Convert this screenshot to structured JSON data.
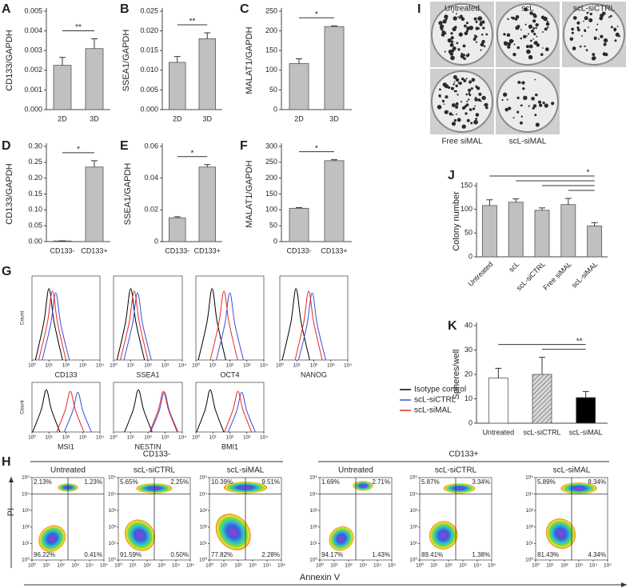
{
  "chart_data": [
    {
      "type": "bar",
      "label": "A",
      "ylabel": "CD133/GAPDH",
      "categories": [
        "2D",
        "3D"
      ],
      "values": [
        0.00225,
        0.0031
      ],
      "errors": [
        0.0004,
        0.0005
      ],
      "ylim": [
        0,
        0.005
      ],
      "yticks": [
        {
          "value": 0,
          "label": "0.000"
        },
        0.001,
        0.002,
        0.003,
        0.004,
        0.005
      ],
      "color": "#c0c0c0",
      "significance": "**"
    },
    {
      "type": "bar",
      "label": "B",
      "ylabel": "SSEA1/GAPDH",
      "categories": [
        "2D",
        "3D"
      ],
      "values": [
        0.012,
        0.018
      ],
      "errors": [
        0.0015,
        0.0015
      ],
      "ylim": [
        0,
        0.025
      ],
      "yticks": [
        {
          "value": 0,
          "label": "0.000"
        },
        0.005,
        {
          "value": 0.01,
          "label": "0.010"
        },
        0.015,
        {
          "value": 0.02,
          "label": "0.020"
        },
        0.025
      ],
      "color": "#c0c0c0",
      "significance": "**"
    },
    {
      "type": "bar",
      "label": "C",
      "ylabel": "MALAT1/GAPDH",
      "categories": [
        "2D",
        "3D"
      ],
      "values": [
        117,
        211
      ],
      "errors": [
        12,
        2
      ],
      "ylim": [
        0,
        250
      ],
      "yticks": [
        0,
        50,
        100,
        150,
        200,
        250
      ],
      "color": "#c0c0c0",
      "significance": "*"
    },
    {
      "type": "bar",
      "label": "D",
      "ylabel": "CD133/GAPDH",
      "categories": [
        "CD133-",
        "CD133+"
      ],
      "values": [
        0.002,
        0.235
      ],
      "errors": [
        0.0005,
        0.02
      ],
      "ylim": [
        0,
        0.3
      ],
      "yticks": [
        {
          "value": 0,
          "label": "0.00"
        },
        0.05,
        {
          "value": 0.1,
          "label": "0.10"
        },
        0.15,
        {
          "value": 0.2,
          "label": "0.20"
        },
        0.25,
        {
          "value": 0.3,
          "label": "0.30"
        }
      ],
      "color": "#c0c0c0",
      "significance": "*"
    },
    {
      "type": "bar",
      "label": "E",
      "ylabel": "SSEA1/GAPDH",
      "categories": [
        "CD133-",
        "CD133+"
      ],
      "values": [
        0.015,
        0.047
      ],
      "errors": [
        0.0007,
        0.0015
      ],
      "ylim": [
        0,
        0.06
      ],
      "yticks": [
        0,
        0.02,
        0.04,
        0.06
      ],
      "color": "#c0c0c0",
      "significance": "*"
    },
    {
      "type": "bar",
      "label": "F",
      "ylabel": "MALAT1/GAPDH",
      "categories": [
        "CD133-",
        "CD133+"
      ],
      "values": [
        105,
        255
      ],
      "errors": [
        2,
        3
      ],
      "ylim": [
        0,
        300
      ],
      "yticks": [
        0,
        50,
        100,
        150,
        200,
        250,
        300
      ],
      "color": "#c0c0c0",
      "significance": "*"
    },
    {
      "type": "bar",
      "label": "J",
      "ylabel": "Colony number",
      "categories": [
        "Untreated",
        "scL",
        "scL-siCTRL",
        "Free siMAL",
        "scL-siMAL"
      ],
      "values": [
        108,
        115,
        98,
        110,
        65
      ],
      "errors": [
        12,
        7,
        5,
        13,
        7
      ],
      "ylim": [
        0,
        150
      ],
      "yticks": [
        0,
        50,
        100,
        150
      ],
      "color": "#c0c0c0",
      "significance": "*",
      "rotate_labels": true
    },
    {
      "type": "bar",
      "label": "K",
      "ylabel": "Spheres/well",
      "categories": [
        "Untreated",
        "scL-siCTRL",
        "scL-siMAL"
      ],
      "values": [
        18.5,
        20,
        10.5
      ],
      "errors": [
        4,
        7,
        2.5
      ],
      "ylim": [
        0,
        40
      ],
      "yticks": [
        0,
        10,
        20,
        30,
        40
      ],
      "colors": [
        "#ffffff",
        "#bfbfbf",
        "#000000"
      ],
      "hatch": [
        false,
        true,
        false
      ],
      "significance": "**"
    },
    {
      "type": "line",
      "label": "G",
      "ylabel": "Count",
      "xlabel": "CD133",
      "xscale": "log",
      "xlim": [
        1,
        10000
      ],
      "xticks": [
        {
          "value": 1,
          "label": "10⁰"
        },
        {
          "value": 10,
          "label": "10¹"
        },
        {
          "value": 100,
          "label": "10²"
        },
        {
          "value": 1000,
          "label": "10³"
        },
        {
          "value": 10000,
          "label": "10⁴"
        }
      ],
      "ylim": [
        0,
        100
      ],
      "series": [
        {
          "color": "#000000",
          "x": [
            1.6,
            5,
            10,
            20,
            63
          ],
          "values": [
            0,
            45,
            85,
            45,
            0
          ]
        },
        {
          "color": "#3a4fd8",
          "x": [
            4,
            12.5,
            25,
            50,
            158
          ],
          "values": [
            0,
            42,
            80,
            42,
            0
          ]
        },
        {
          "color": "#e8262b",
          "x": [
            2.5,
            8,
            16,
            32,
            100
          ],
          "values": [
            0,
            44,
            82,
            44,
            0
          ]
        }
      ]
    },
    {
      "type": "line",
      "xlabel": "SSEA1",
      "xscale": "log",
      "xlim": [
        1,
        10000
      ],
      "xticks": [
        {
          "value": 1,
          "label": "10⁰"
        },
        {
          "value": 10,
          "label": "10¹"
        },
        {
          "value": 100,
          "label": "10²"
        },
        {
          "value": 1000,
          "label": "10³"
        },
        {
          "value": 10000,
          "label": "10⁴"
        }
      ],
      "ylim": [
        0,
        100
      ],
      "series": [
        {
          "color": "#000000",
          "x": [
            1.6,
            5,
            10,
            20,
            63
          ],
          "values": [
            0,
            45,
            85,
            45,
            0
          ]
        },
        {
          "color": "#3a4fd8",
          "x": [
            4,
            12.5,
            25,
            50,
            158
          ],
          "values": [
            0,
            42,
            80,
            42,
            0
          ]
        },
        {
          "color": "#e8262b",
          "x": [
            2.5,
            8,
            16,
            32,
            100
          ],
          "values": [
            0,
            44,
            82,
            44,
            0
          ]
        }
      ]
    },
    {
      "type": "line",
      "xlabel": "OCT4",
      "xscale": "log",
      "xlim": [
        1,
        10000
      ],
      "xticks": [
        {
          "value": 1,
          "label": "10⁰"
        },
        {
          "value": 10,
          "label": "10¹"
        },
        {
          "value": 100,
          "label": "10²"
        },
        {
          "value": 1000,
          "label": "10³"
        },
        {
          "value": 10000,
          "label": "10⁴"
        }
      ],
      "ylim": [
        0,
        100
      ],
      "series": [
        {
          "color": "#000000",
          "x": [
            1.4,
            4.5,
            9,
            18,
            57
          ],
          "values": [
            0,
            45,
            85,
            45,
            0
          ]
        },
        {
          "color": "#3a4fd8",
          "x": [
            16,
            50,
            100,
            200,
            630
          ],
          "values": [
            0,
            42,
            80,
            42,
            0
          ]
        },
        {
          "color": "#e8262b",
          "x": [
            7.1,
            22.5,
            45,
            90,
            284
          ],
          "values": [
            0,
            44,
            82,
            44,
            0
          ]
        }
      ]
    },
    {
      "type": "line",
      "xlabel": "NANOG",
      "xscale": "log",
      "xlim": [
        1,
        10000
      ],
      "xticks": [
        {
          "value": 1,
          "label": "10⁰"
        },
        {
          "value": 10,
          "label": "10¹"
        },
        {
          "value": 100,
          "label": "10²"
        },
        {
          "value": 1000,
          "label": "10³"
        },
        {
          "value": 10000,
          "label": "10⁴"
        }
      ],
      "ylim": [
        0,
        100
      ],
      "series": [
        {
          "color": "#000000",
          "x": [
            1.4,
            4.5,
            9,
            18,
            57
          ],
          "values": [
            0,
            45,
            85,
            45,
            0
          ]
        },
        {
          "color": "#3a4fd8",
          "x": [
            12.7,
            40,
            80,
            160,
            504
          ],
          "values": [
            0,
            42,
            80,
            42,
            0
          ]
        },
        {
          "color": "#e8262b",
          "x": [
            7.9,
            25,
            50,
            100,
            315
          ],
          "values": [
            0,
            44,
            82,
            44,
            0
          ]
        }
      ]
    },
    {
      "type": "line",
      "ylabel": "Count",
      "xlabel": "MSI1",
      "xscale": "log",
      "xlim": [
        1,
        10000
      ],
      "xticks": [
        {
          "value": 1,
          "label": "10⁰"
        },
        {
          "value": 10,
          "label": "10¹"
        },
        {
          "value": 100,
          "label": "10²"
        },
        {
          "value": 1000,
          "label": "10³"
        },
        {
          "value": 10000,
          "label": "10⁴"
        }
      ],
      "ylim": [
        0,
        100
      ],
      "series": [
        {
          "color": "#000000",
          "x": [
            1.1,
            3.5,
            7,
            14,
            44
          ],
          "values": [
            0,
            45,
            85,
            45,
            0
          ]
        },
        {
          "color": "#3a4fd8",
          "x": [
            79,
            250,
            500,
            1000,
            3150
          ],
          "values": [
            0,
            42,
            80,
            42,
            0
          ]
        },
        {
          "color": "#e8262b",
          "x": [
            28.6,
            90,
            180,
            360,
            1134
          ],
          "values": [
            0,
            44,
            82,
            44,
            0
          ]
        }
      ]
    },
    {
      "type": "line",
      "xlabel": "NESTIN",
      "xscale": "log",
      "xlim": [
        1,
        10000
      ],
      "xticks": [
        {
          "value": 1,
          "label": "10⁰"
        },
        {
          "value": 10,
          "label": "10¹"
        },
        {
          "value": 100,
          "label": "10²"
        },
        {
          "value": 1000,
          "label": "10³"
        },
        {
          "value": 10000,
          "label": "10⁴"
        }
      ],
      "ylim": [
        0,
        100
      ],
      "series": [
        {
          "color": "#000000",
          "x": [
            4.4,
            14,
            28,
            56,
            176
          ],
          "values": [
            0,
            45,
            85,
            45,
            0
          ]
        },
        {
          "color": "#3a4fd8",
          "x": [
            143,
            450,
            900,
            1800,
            5670
          ],
          "values": [
            0,
            42,
            80,
            42,
            0
          ]
        },
        {
          "color": "#e8262b",
          "x": [
            127,
            400,
            800,
            1600,
            5040
          ],
          "values": [
            0,
            44,
            82,
            44,
            0
          ]
        }
      ]
    },
    {
      "type": "line",
      "xlabel": "BMI1",
      "xscale": "log",
      "xlim": [
        1,
        10000
      ],
      "xticks": [
        {
          "value": 1,
          "label": "10⁰"
        },
        {
          "value": 10,
          "label": "10¹"
        },
        {
          "value": 100,
          "label": "10²"
        },
        {
          "value": 1000,
          "label": "10³"
        },
        {
          "value": 10000,
          "label": "10⁴"
        }
      ],
      "ylim": [
        0,
        100
      ],
      "series": [
        {
          "name": "Isotype control",
          "color": "#000000",
          "x": [
            1.1,
            3.5,
            7,
            14,
            44
          ],
          "values": [
            0,
            45,
            85,
            45,
            0
          ]
        },
        {
          "name": "scL-siCTRL",
          "color": "#3a4fd8",
          "x": [
            79,
            250,
            500,
            1000,
            3150
          ],
          "values": [
            0,
            42,
            80,
            42,
            0
          ]
        },
        {
          "name": "scL-siMAL",
          "color": "#e8262b",
          "x": [
            48,
            150,
            300,
            600,
            1890
          ],
          "values": [
            0,
            44,
            82,
            44,
            0
          ]
        }
      ]
    }
  ],
  "panel_h": {
    "label": "H",
    "xlabel": "Annexin V",
    "ylabel": "PI",
    "groups": [
      "CD133-",
      "CD133+"
    ],
    "lim": [
      1,
      100000
    ],
    "ticks": [
      {
        "value": 1,
        "label": "10⁰"
      },
      {
        "value": 10,
        "label": "10¹"
      },
      {
        "value": 100,
        "label": "10²"
      },
      {
        "value": 1000,
        "label": "10³"
      },
      {
        "value": 10000,
        "label": "10⁴"
      },
      {
        "value": 100000,
        "label": "10⁵"
      }
    ],
    "plots": [
      {
        "title": "Untreated",
        "quadrants": [
          "2.13%",
          "1.23%",
          "96.22%",
          "0.41%"
        ]
      },
      {
        "title": "scL-siCTRL",
        "quadrants": [
          "5.65%",
          "2.25%",
          "91.59%",
          "0.50%"
        ]
      },
      {
        "title": "scL-siMAL",
        "quadrants": [
          "10.39%",
          "9.51%",
          "77.82%",
          "2.28%"
        ]
      },
      {
        "title": "Untreated",
        "quadrants": [
          "1.69%",
          "2.71%",
          "94.17%",
          "1.43%"
        ]
      },
      {
        "title": "scL-siCTRL",
        "quadrants": [
          "5.87%",
          "3.34%",
          "89.41%",
          "1.38%"
        ]
      },
      {
        "title": "scL-siMAL",
        "quadrants": [
          "5.89%",
          "8.34%",
          "81.43%",
          "4.34%"
        ]
      }
    ]
  },
  "panel_i": {
    "label": "I",
    "plates": [
      "Untreated",
      "scL",
      "scL-siCTRL",
      "Free siMAL",
      "scL-siMAL"
    ]
  }
}
